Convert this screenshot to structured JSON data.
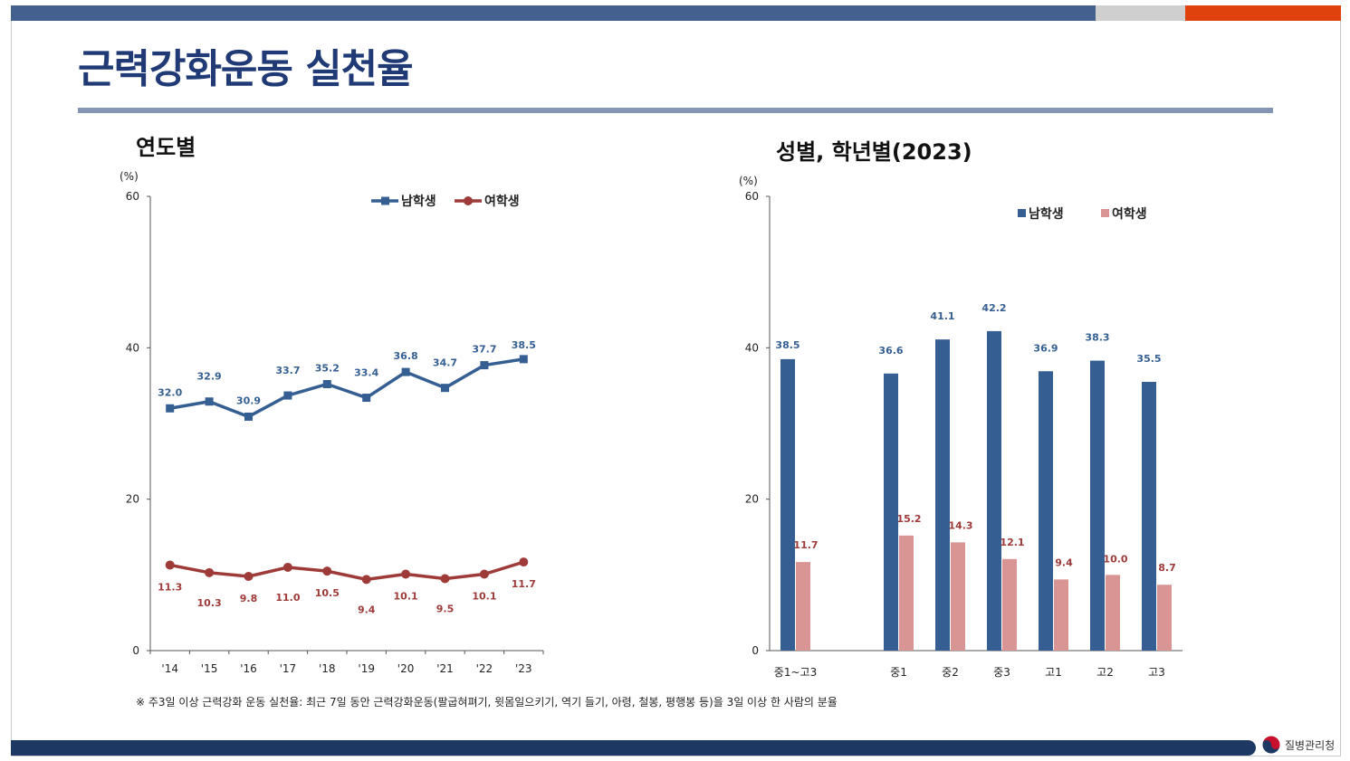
{
  "page": {
    "title": "근력강화운동 실천율",
    "footnote": "※ 주3일 이상 근력강화 운동 실천율: 최근 7일 동안 근력강화운동(팔굽혀펴기, 윗몸일으키기, 역기 들기, 아령, 철봉, 평행봉 등)을 3일 이상 한 사람의 분율",
    "logo_text": "질병관리청",
    "colors": {
      "navy": "#1f3a75",
      "male": "#355f93",
      "female_line": "#9e3a38",
      "female_bar": "#d99594",
      "accent_orange": "#e0420d",
      "accent_gray": "#cfcfcf"
    }
  },
  "chart_data": [
    {
      "type": "line",
      "title": "연도별",
      "ylabel": "(%)",
      "ylim": [
        0,
        60
      ],
      "yticks": [
        0,
        20,
        40,
        60
      ],
      "grid": false,
      "legend_placement": "top-right",
      "categories": [
        "'14",
        "'15",
        "'16",
        "'17",
        "'18",
        "'19",
        "'20",
        "'21",
        "'22",
        "'23"
      ],
      "series": [
        {
          "name": "남학생",
          "color": "#355f93",
          "marker": "square",
          "values": [
            32.0,
            32.9,
            30.9,
            33.7,
            35.2,
            33.4,
            36.8,
            34.7,
            37.7,
            38.5
          ],
          "labels": [
            "32.0",
            "32.9",
            "30.9",
            "33.7",
            "35.2",
            "33.4",
            "36.8",
            "34.7",
            "37.7",
            "38.5"
          ]
        },
        {
          "name": "여학생",
          "color": "#9e3a38",
          "marker": "circle",
          "values": [
            11.3,
            10.3,
            9.8,
            11.0,
            10.5,
            9.4,
            10.1,
            9.5,
            10.1,
            11.7
          ],
          "labels": [
            "11.3",
            "10.3",
            "9.8",
            "11.0",
            "10.5",
            "9.4",
            "10.1",
            "9.5",
            "10.1",
            "11.7"
          ]
        }
      ]
    },
    {
      "type": "bar",
      "title": "성별, 학년별(2023)",
      "ylabel": "(%)",
      "ylim": [
        0,
        60
      ],
      "yticks": [
        0,
        20,
        40,
        60
      ],
      "grid": false,
      "legend_placement": "top-right",
      "categories": [
        "중1~고3",
        "",
        "중1",
        "중2",
        "중3",
        "고1",
        "고2",
        "고3"
      ],
      "series": [
        {
          "name": "남학생",
          "color": "#355f93",
          "values": [
            38.5,
            null,
            36.6,
            41.1,
            42.2,
            36.9,
            38.3,
            35.5
          ],
          "labels": [
            "38.5",
            "",
            "36.6",
            "41.1",
            "42.2",
            "36.9",
            "38.3",
            "35.5"
          ]
        },
        {
          "name": "여학생",
          "color": "#d99594",
          "values": [
            11.7,
            null,
            15.2,
            14.3,
            12.1,
            9.4,
            10.0,
            8.7
          ],
          "labels": [
            "11.7",
            "",
            "15.2",
            "14.3",
            "12.1",
            "9.4",
            "10.0",
            "8.7"
          ]
        }
      ]
    }
  ]
}
